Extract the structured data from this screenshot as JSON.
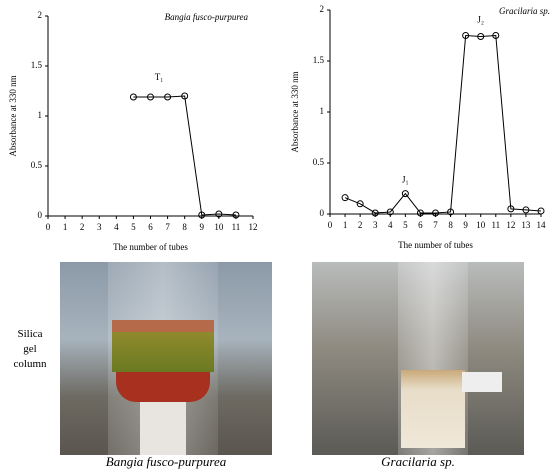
{
  "chart_data": [
    {
      "type": "line",
      "title": "Bangia fusco-purpurea",
      "x_label": "The number of tubes",
      "y_label": "Absorbance at 330 nm",
      "annotations": [
        "T₁"
      ],
      "x": [
        5,
        6,
        7,
        8,
        9,
        10,
        11
      ],
      "series": [
        {
          "name": "Bangia fusco-purpurea",
          "color": "#000000",
          "values": [
            1.19,
            1.19,
            1.19,
            1.2,
            0.01,
            0.02,
            0.01
          ]
        }
      ],
      "xlim": [
        0,
        12
      ],
      "xticks": [
        0,
        1,
        2,
        3,
        4,
        5,
        6,
        7,
        8,
        9,
        10,
        11,
        12
      ],
      "ylim": [
        0,
        2
      ],
      "yticks": [
        0,
        0.5,
        1,
        1.5,
        2
      ],
      "grid": false
    },
    {
      "type": "line",
      "title": "Gracilaria sp.",
      "x_label": "The number of tubes",
      "y_label": "Absorbance at 330 nm",
      "annotations": [
        "J₁",
        "J₂"
      ],
      "x": [
        1,
        2,
        3,
        4,
        5,
        6,
        7,
        8,
        9,
        10,
        11,
        12,
        13,
        14
      ],
      "series": [
        {
          "name": "Gracilaria sp.",
          "color": "#000000",
          "values": [
            0.16,
            0.1,
            0.01,
            0.02,
            0.2,
            0.01,
            0.01,
            0.02,
            1.75,
            1.74,
            1.75,
            0.05,
            0.04,
            0.03
          ]
        }
      ],
      "xlim": [
        0,
        14
      ],
      "xticks": [
        0,
        1,
        2,
        3,
        4,
        5,
        6,
        7,
        8,
        9,
        10,
        11,
        12,
        13,
        14
      ],
      "ylim": [
        0,
        2
      ],
      "yticks": [
        0,
        0.5,
        1,
        1.5,
        2
      ],
      "grid": false
    }
  ],
  "side_label": "Silica gel column",
  "photos": [
    {
      "caption": "Bangia fusco-purpurea"
    },
    {
      "caption": "Gracilaria sp."
    }
  ]
}
